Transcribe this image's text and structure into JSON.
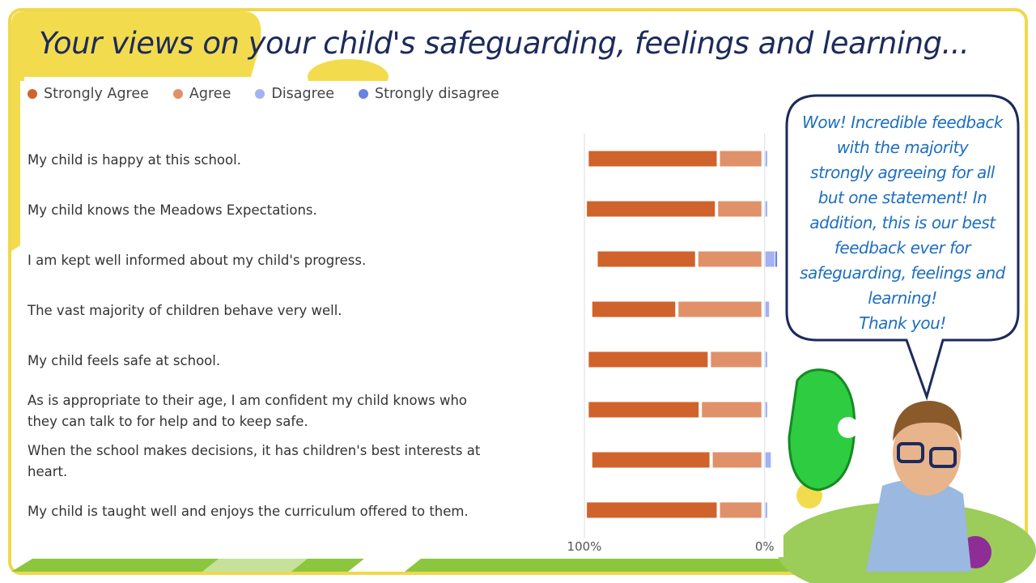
{
  "chart_data": {
    "type": "bar",
    "title": "Your views on your child's safeguarding, feelings and learning...",
    "categories": [
      "My child is happy at this school.",
      "My child knows the Meadows Expectations.",
      "I am kept well informed about my child's progress.",
      "The vast majority of children behave very well.",
      "My child feels safe at school.",
      "As is appropriate to their age, I am confident my child knows who they can talk to for help and to keep safe.",
      "When the school makes decisions, it has children's best interests at heart.",
      "My child is taught well and enjoys the curriculum offered to them."
    ],
    "series": [
      {
        "name": "Strongly Agree",
        "color": "#d0632b",
        "values": [
          71,
          71,
          54,
          46,
          66,
          61,
          65,
          72
        ]
      },
      {
        "name": "Agree",
        "color": "#e0916a",
        "values": [
          23,
          24,
          35,
          46,
          28,
          33,
          27,
          23
        ]
      },
      {
        "name": "Disagree",
        "color": "#a4b2f2",
        "values": [
          1,
          1,
          5,
          2,
          1,
          1,
          3,
          1
        ]
      },
      {
        "name": "Strongly disagree",
        "color": "#6a80e2",
        "values": [
          0,
          0,
          1,
          0,
          0,
          0,
          0,
          0
        ]
      }
    ],
    "xlim": [
      100,
      -10
    ],
    "xticks": [
      {
        "value": 100,
        "label": "100%"
      },
      {
        "value": 0,
        "label": "0%"
      }
    ]
  },
  "bubble": {
    "lines": [
      "Wow! Incredible feedback",
      "with the majority",
      "strongly agreeing for all",
      "but one statement! In",
      "addition, this is our best",
      "feedback ever for",
      "safeguarding, feelings and",
      "learning!",
      "Thank you!"
    ]
  }
}
